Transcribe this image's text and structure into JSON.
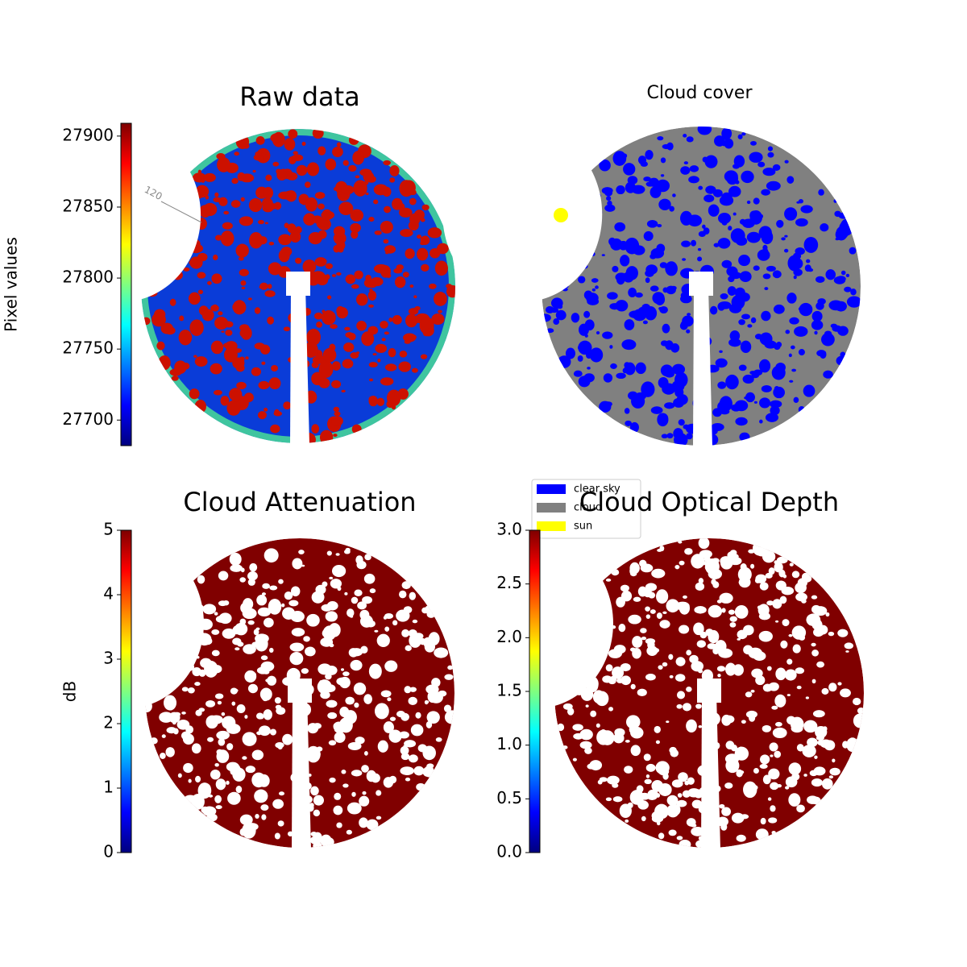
{
  "chart_data": [
    {
      "type": "image",
      "title": "Raw data",
      "annotations": [
        "120"
      ],
      "colorbar": {
        "label": "Pixel values",
        "colormap": "jet",
        "clim": [
          27682,
          27909
        ],
        "ticks": [
          27700,
          27750,
          27800,
          27850,
          27900
        ]
      }
    },
    {
      "type": "image",
      "title": "Cloud cover",
      "legend": "lower left",
      "series": [
        {
          "name": "clear sky",
          "color": "#0000ff"
        },
        {
          "name": "cloud",
          "color": "#808080"
        },
        {
          "name": "sun",
          "color": "#ffff00"
        }
      ]
    },
    {
      "type": "image",
      "title": "Cloud Attenuation",
      "colorbar": {
        "label": "dB",
        "colormap": "jet",
        "clim": [
          0,
          5
        ],
        "ticks": [
          0,
          1,
          2,
          3,
          4,
          5
        ]
      }
    },
    {
      "type": "image",
      "title": "Cloud Optical Depth",
      "colorbar": {
        "colormap": "jet",
        "clim": [
          0,
          3
        ],
        "ticks": [
          {
            "value": 0,
            "label": "0.0"
          },
          0.5,
          {
            "value": 1,
            "label": "1.0"
          },
          1.5,
          {
            "value": 2,
            "label": "2.0"
          },
          2.5,
          {
            "value": 3,
            "label": "3.0"
          }
        ]
      }
    }
  ]
}
